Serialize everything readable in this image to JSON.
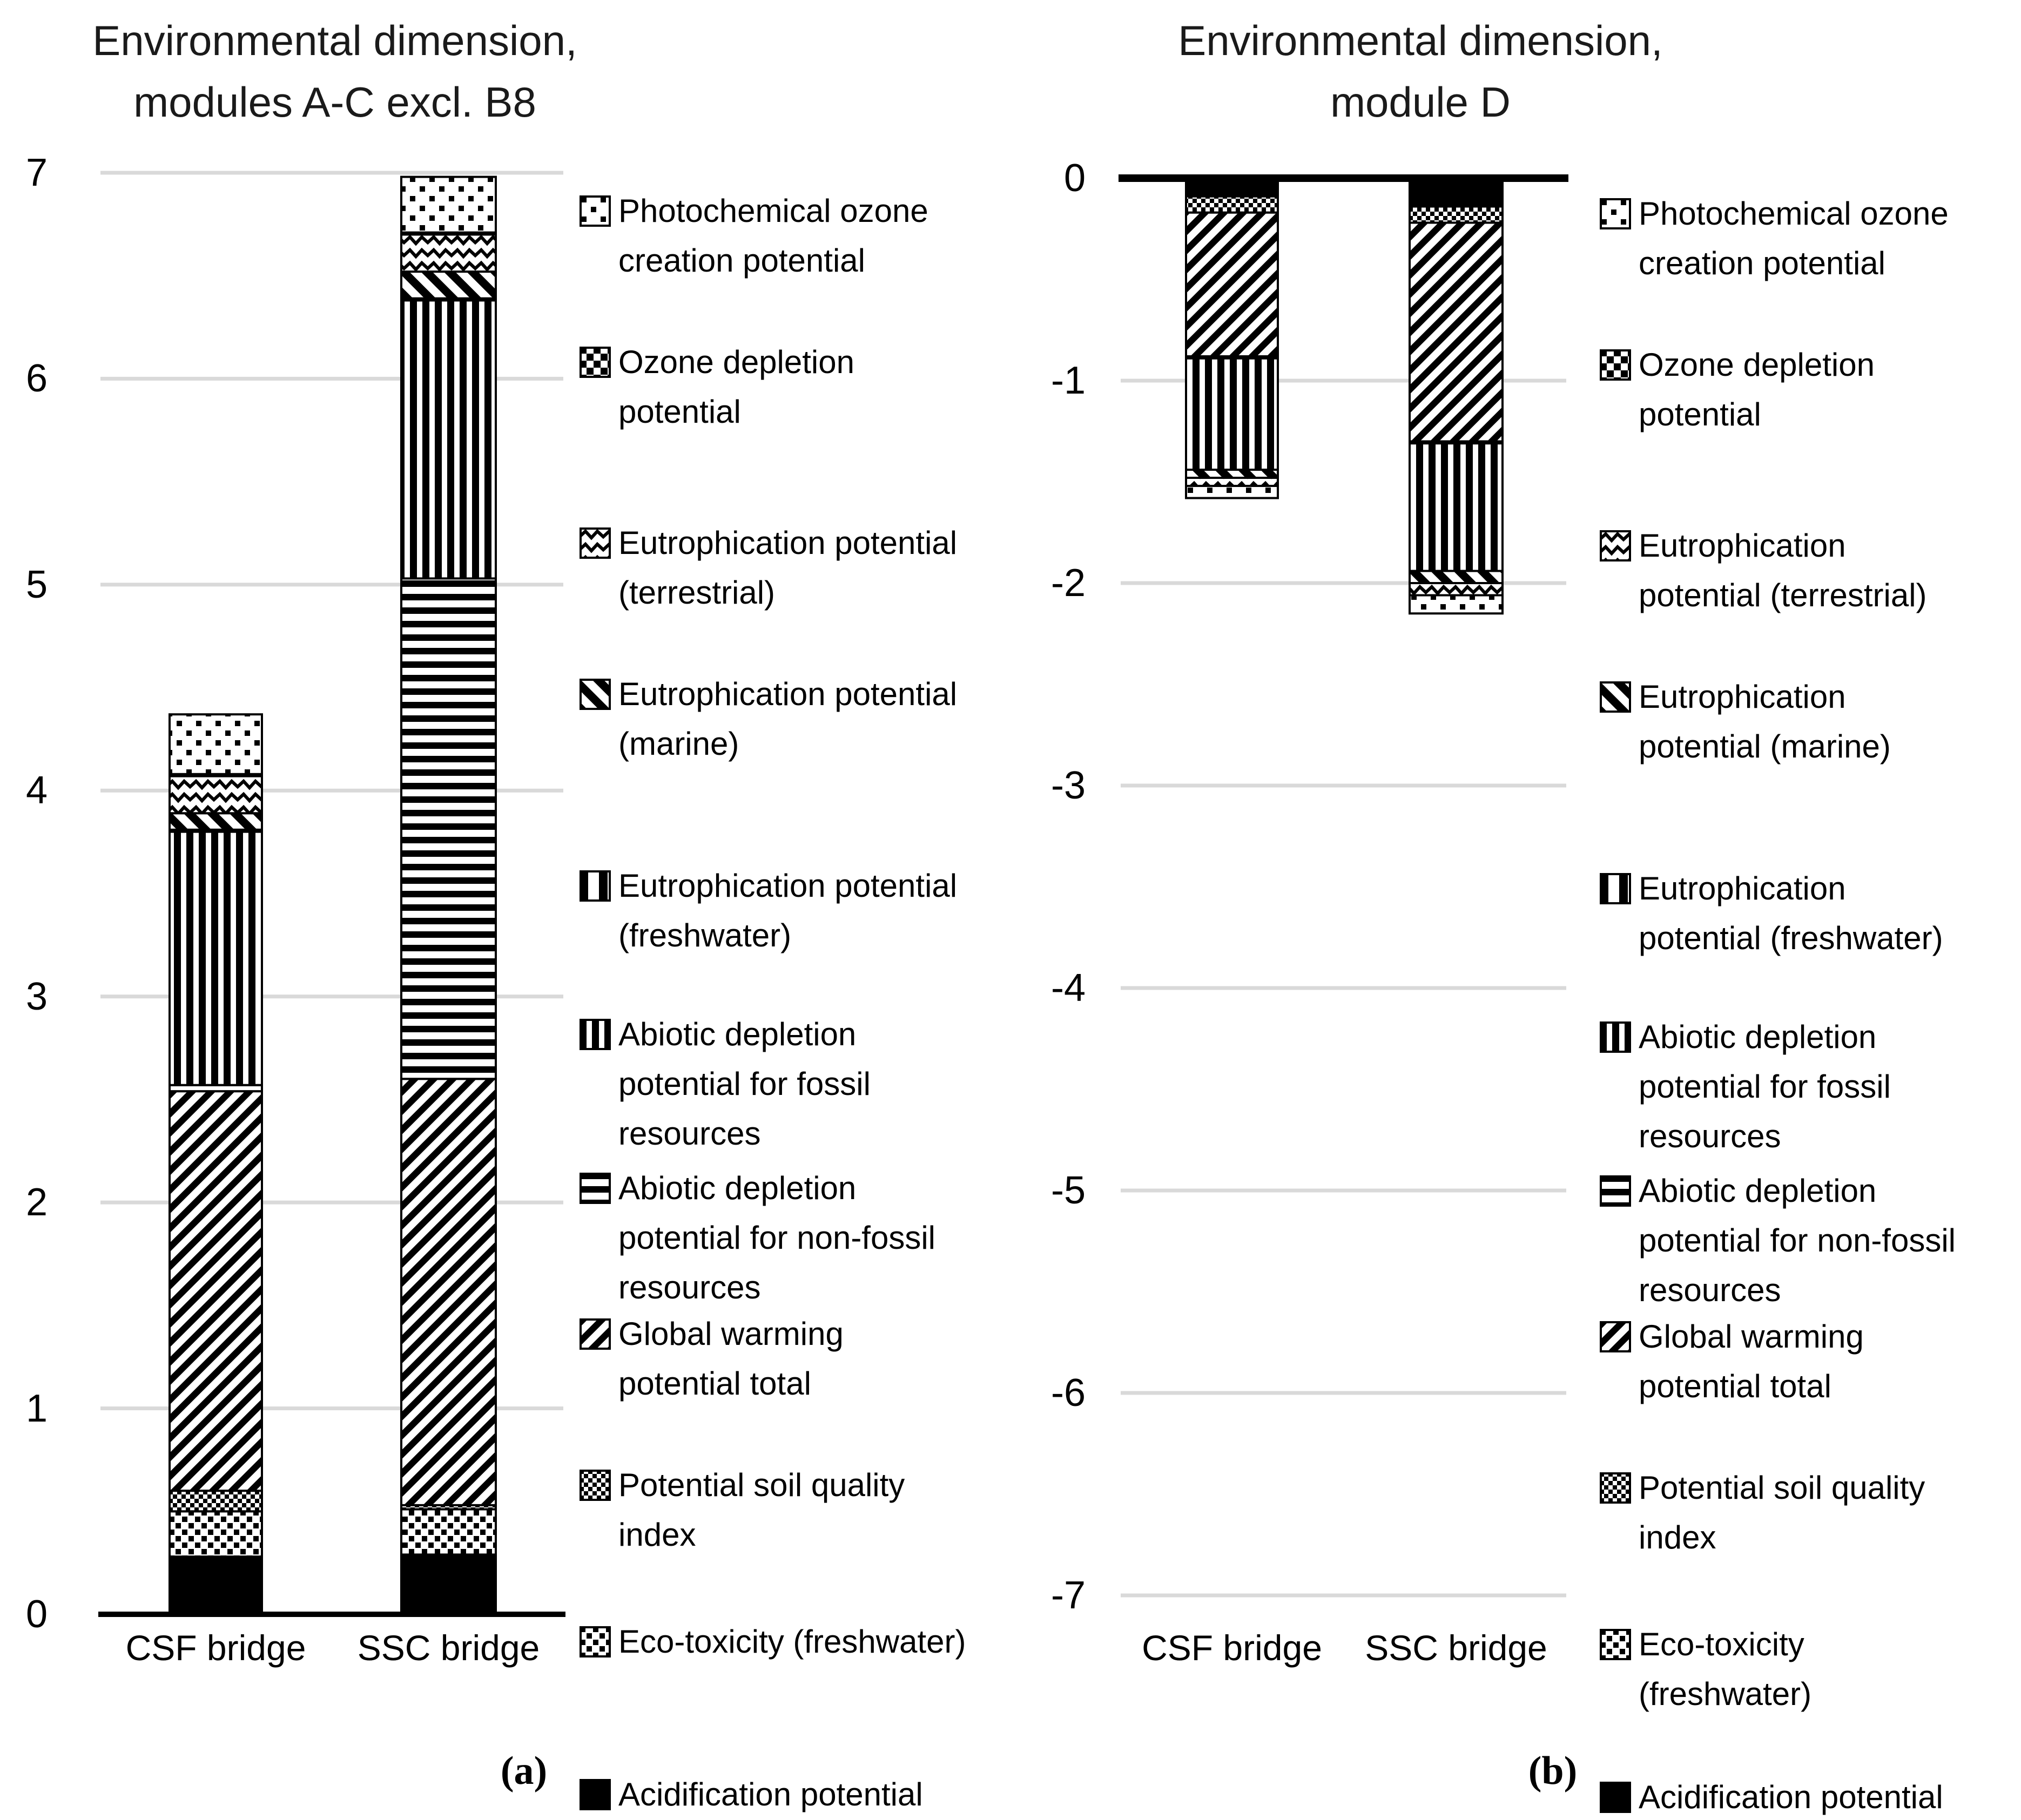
{
  "chart_data": [
    {
      "type": "bar",
      "subtype": "stacked-vertical",
      "title_lines": [
        "Environmental dimension,",
        "modules A-C excl. B8"
      ],
      "caption": "(a)",
      "categories": [
        "CSF bridge",
        "SSC bridge"
      ],
      "ylim": [
        0,
        7
      ],
      "y_ticks": [
        7,
        6,
        5,
        4,
        3,
        2,
        1,
        0
      ],
      "grid": "horizontal-light-gray",
      "legend_position": "right",
      "series": [
        {
          "name": "Acidification potential",
          "pattern": "solid",
          "values": [
            0.28,
            0.29
          ]
        },
        {
          "name": "Eco-toxicity (freshwater)",
          "pattern": "ecotox",
          "values": [
            0.22,
            0.22
          ]
        },
        {
          "name": "Potential soil quality index",
          "pattern": "soil",
          "values": [
            0.1,
            0.02
          ]
        },
        {
          "name": "Global warming potential total",
          "pattern": "gwp",
          "values": [
            1.94,
            2.07
          ]
        },
        {
          "name": "Abiotic depletion potential for non-fossil resources",
          "pattern": "nonfossil",
          "values": [
            0.03,
            2.43
          ]
        },
        {
          "name": "Abiotic depletion potential for fossil resources",
          "pattern": "fossil",
          "values": [
            1.23,
            1.35
          ]
        },
        {
          "name": "Eutrophication potential (freshwater)",
          "pattern": "freshwater",
          "values": [
            0.01,
            0.01
          ]
        },
        {
          "name": "Eutrophication potential (marine)",
          "pattern": "marine",
          "values": [
            0.08,
            0.13
          ]
        },
        {
          "name": "Eutrophication potential (terrestrial)",
          "pattern": "terrestrial",
          "values": [
            0.18,
            0.18
          ]
        },
        {
          "name": "Ozone depletion potential",
          "pattern": "ozone",
          "values": [
            0.01,
            0.01
          ]
        },
        {
          "name": "Photochemical ozone creation potential",
          "pattern": "photochem",
          "values": [
            0.29,
            0.27
          ]
        }
      ],
      "totals": [
        4.37,
        6.98
      ],
      "legend": [
        {
          "pattern": "photochem",
          "lines": [
            "Photochemical ozone",
            "creation potential"
          ]
        },
        {
          "pattern": "ozone",
          "lines": [
            "Ozone depletion",
            "potential"
          ]
        },
        {
          "pattern": "terrestrial",
          "lines": [
            "Eutrophication potential",
            "(terrestrial)"
          ]
        },
        {
          "pattern": "marine",
          "lines": [
            "Eutrophication potential",
            "(marine)"
          ]
        },
        {
          "pattern": "freshwater",
          "lines": [
            "Eutrophication potential",
            "(freshwater)"
          ]
        },
        {
          "pattern": "fossil",
          "lines": [
            "Abiotic depletion",
            "potential for fossil",
            "resources"
          ]
        },
        {
          "pattern": "nonfossil",
          "lines": [
            "Abiotic depletion",
            "potential for non-fossil",
            "resources"
          ]
        },
        {
          "pattern": "gwp",
          "lines": [
            "Global warming",
            "potential total"
          ]
        },
        {
          "pattern": "soil",
          "lines": [
            "Potential soil quality",
            "index"
          ]
        },
        {
          "pattern": "ecotox",
          "lines": [
            "Eco-toxicity (freshwater)"
          ]
        },
        {
          "pattern": "solid",
          "lines": [
            "Acidification potential"
          ]
        }
      ]
    },
    {
      "type": "bar",
      "subtype": "stacked-vertical-negative",
      "title_lines": [
        "Environmental dimension,",
        "module D"
      ],
      "caption": "(b)",
      "categories": [
        "CSF bridge",
        "SSC bridge"
      ],
      "ylim": [
        -7,
        0
      ],
      "y_ticks": [
        0,
        -1,
        -2,
        -3,
        -4,
        -5,
        -6,
        -7
      ],
      "grid": "horizontal-light-gray",
      "legend_position": "right",
      "series": [
        {
          "name": "Acidification potential",
          "pattern": "solid",
          "values": [
            -0.08,
            -0.13
          ]
        },
        {
          "name": "Eco-toxicity (freshwater)",
          "pattern": "ecotox",
          "values": [
            -0.01,
            -0.01
          ]
        },
        {
          "name": "Potential soil quality index",
          "pattern": "soil",
          "values": [
            -0.08,
            -0.08
          ]
        },
        {
          "name": "Global warming potential total",
          "pattern": "gwp",
          "values": [
            -0.71,
            -1.08
          ]
        },
        {
          "name": "Abiotic depletion potential for non-fossil resources",
          "pattern": "nonfossil",
          "values": [
            -0.01,
            -0.01
          ]
        },
        {
          "name": "Abiotic depletion potential for fossil resources",
          "pattern": "fossil",
          "values": [
            -0.55,
            -0.63
          ]
        },
        {
          "name": "Eutrophication potential (freshwater)",
          "pattern": "freshwater",
          "values": [
            0.0,
            0.0
          ]
        },
        {
          "name": "Eutrophication potential (marine)",
          "pattern": "marine",
          "values": [
            -0.04,
            -0.06
          ]
        },
        {
          "name": "Eutrophication potential (terrestrial)",
          "pattern": "terrestrial",
          "values": [
            -0.04,
            -0.06
          ]
        },
        {
          "name": "Ozone depletion potential",
          "pattern": "ozone",
          "values": [
            0.0,
            0.0
          ]
        },
        {
          "name": "Photochemical ozone creation potential",
          "pattern": "photochem",
          "values": [
            -0.06,
            -0.09
          ]
        }
      ],
      "totals": [
        -1.58,
        -2.15
      ],
      "legend": [
        {
          "pattern": "photochem",
          "lines": [
            "Photochemical ozone",
            "creation potential"
          ]
        },
        {
          "pattern": "ozone",
          "lines": [
            "Ozone depletion",
            "potential"
          ]
        },
        {
          "pattern": "terrestrial",
          "lines": [
            "Eutrophication",
            "potential (terrestrial)"
          ]
        },
        {
          "pattern": "marine",
          "lines": [
            "Eutrophication",
            "potential (marine)"
          ]
        },
        {
          "pattern": "freshwater",
          "lines": [
            "Eutrophication",
            "potential (freshwater)"
          ]
        },
        {
          "pattern": "fossil",
          "lines": [
            "Abiotic depletion",
            "potential for fossil",
            "resources"
          ]
        },
        {
          "pattern": "nonfossil",
          "lines": [
            "Abiotic depletion",
            "potential for non-fossil",
            "resources"
          ]
        },
        {
          "pattern": "gwp",
          "lines": [
            "Global warming",
            "potential total"
          ]
        },
        {
          "pattern": "soil",
          "lines": [
            "Potential soil quality",
            "index"
          ]
        },
        {
          "pattern": "ecotox",
          "lines": [
            "Eco-toxicity",
            "(freshwater)"
          ]
        },
        {
          "pattern": "solid",
          "lines": [
            "Acidification potential"
          ]
        }
      ]
    }
  ],
  "colors": {
    "foreground": "#000000",
    "background": "#ffffff",
    "gridline": "#d9d9d9"
  }
}
